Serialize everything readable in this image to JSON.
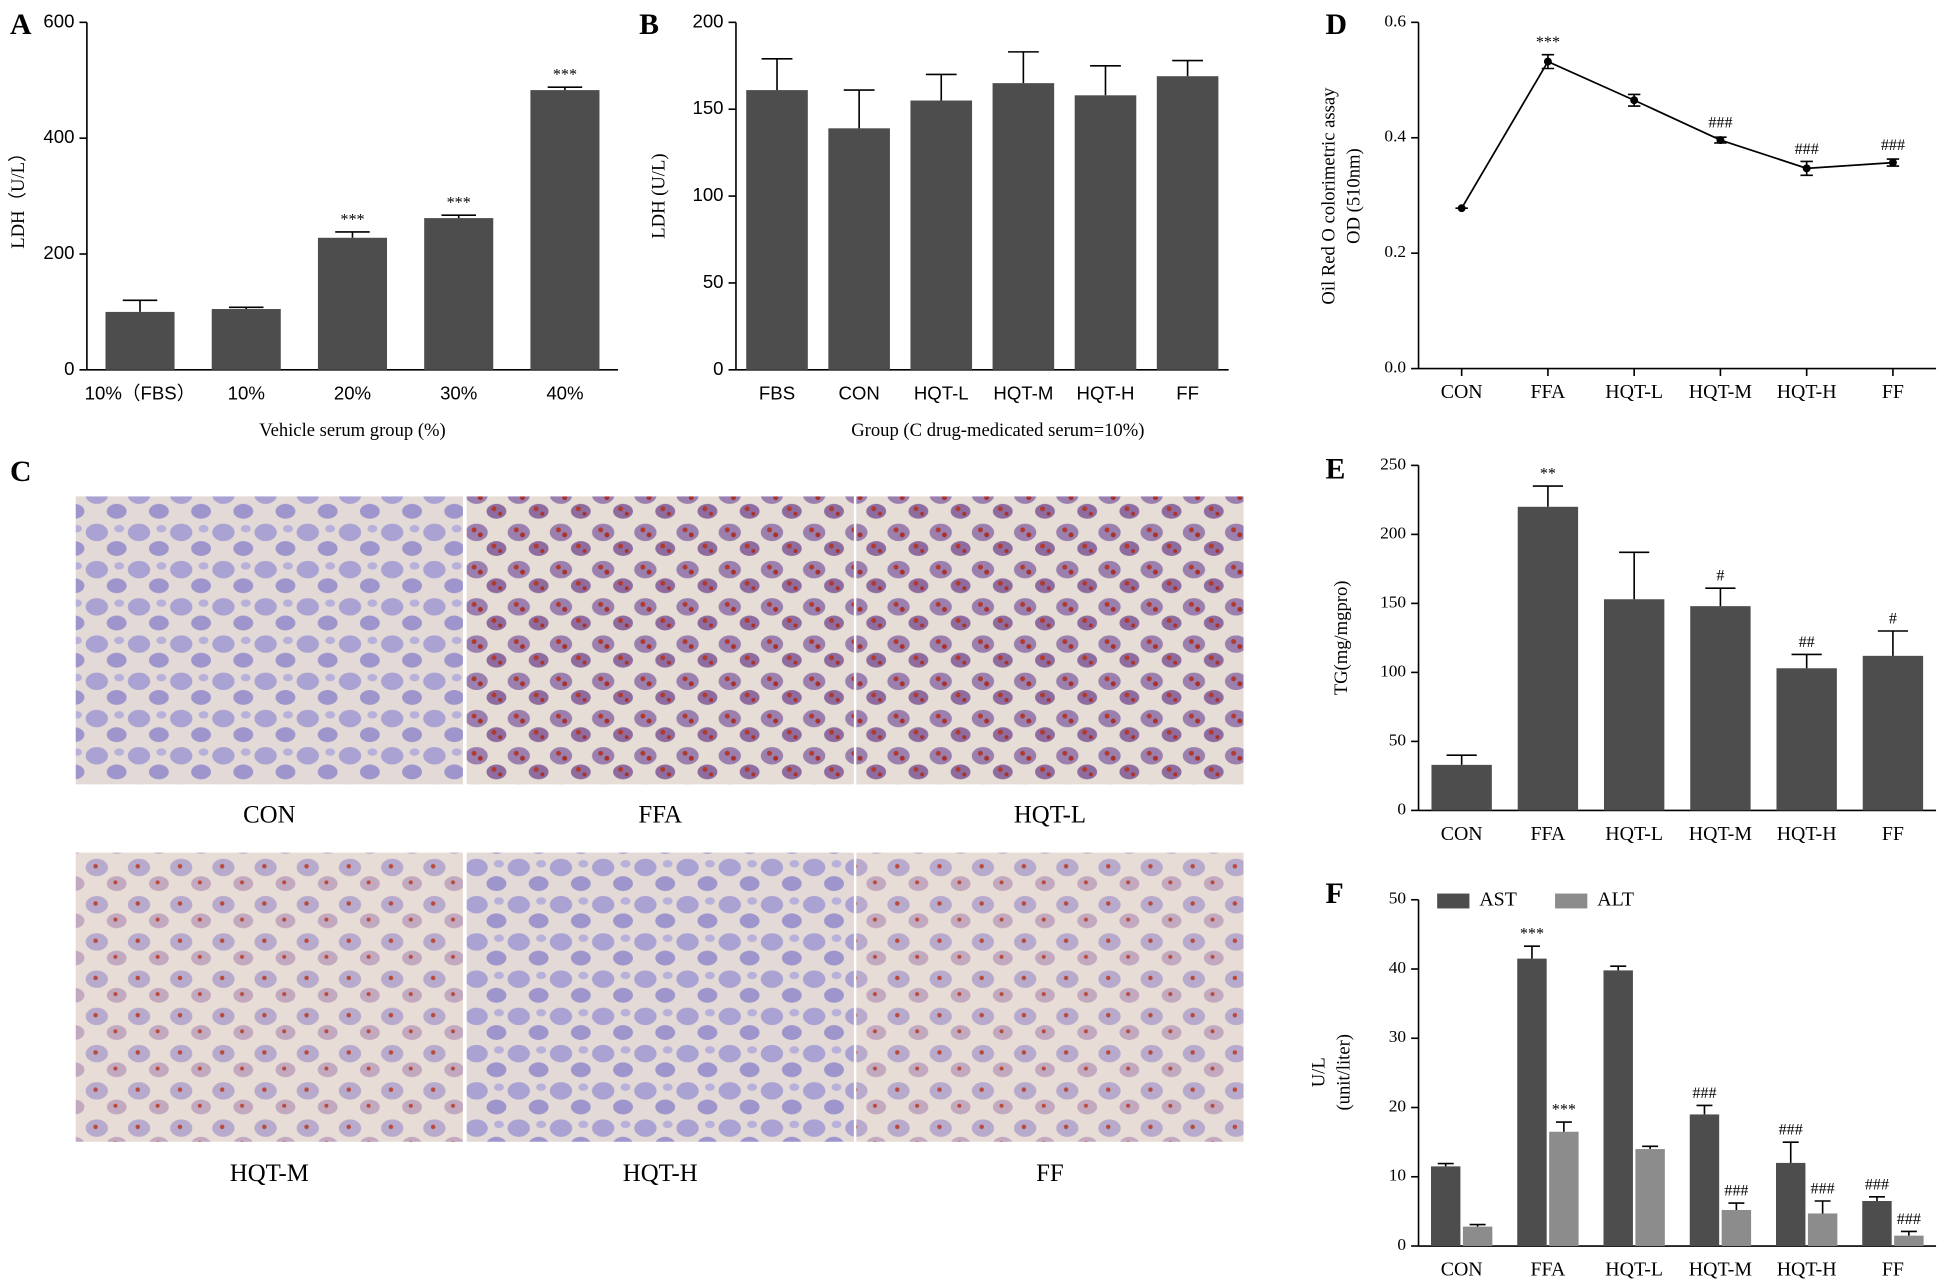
{
  "chart_data": [
    {
      "type": "bar",
      "panel": "A",
      "categories": [
        "10%（FBS）",
        "10%",
        "20%",
        "30%",
        "40%"
      ],
      "values": [
        100,
        105,
        228,
        262,
        483
      ],
      "errors": [
        20,
        3,
        10,
        5,
        5
      ],
      "annotations": [
        null,
        null,
        "***",
        "***",
        "***"
      ],
      "color": "#4d4d4d",
      "xlabel": "Vehicle serum group (%)",
      "ylabel": "LDH（U/L）",
      "ylim": [
        0,
        600
      ],
      "yticks": [
        0,
        200,
        400,
        600
      ]
    },
    {
      "type": "bar",
      "panel": "B",
      "categories": [
        "FBS",
        "CON",
        "HQT-L",
        "HQT-M",
        "HQT-H",
        "FF"
      ],
      "values": [
        161,
        139,
        155,
        165,
        158,
        169
      ],
      "errors": [
        18,
        22,
        15,
        18,
        17,
        9
      ],
      "color": "#4d4d4d",
      "xlabel": "Group (C drug-medicated serum=10%)",
      "ylabel": "LDH (U/L)",
      "ylim": [
        0,
        200
      ],
      "yticks": [
        0,
        50,
        100,
        150,
        200
      ]
    },
    {
      "type": "line",
      "panel": "D",
      "categories": [
        "CON",
        "FFA",
        "HQT-L",
        "HQT-M",
        "HQT-H",
        "FF"
      ],
      "values": [
        0.278,
        0.532,
        0.465,
        0.396,
        0.347,
        0.357
      ],
      "errors": [
        0,
        0.012,
        0.01,
        0.005,
        0.012,
        0.006
      ],
      "annotations": [
        null,
        "***",
        null,
        "###",
        "###",
        "###"
      ],
      "color": "#000000",
      "ylabel": [
        "Oil Red O colorimetric assay",
        "OD (510nm)"
      ],
      "ylim": [
        0,
        0.6
      ],
      "yticks": [
        {
          "value": 0,
          "label": "0.0"
        },
        0.2,
        0.4,
        0.6
      ]
    },
    {
      "type": "bar",
      "panel": "E",
      "categories": [
        "CON",
        "FFA",
        "HQT-L",
        "HQT-M",
        "HQT-H",
        "FF"
      ],
      "values": [
        33,
        220,
        153,
        148,
        103,
        112
      ],
      "errors": [
        7,
        15,
        34,
        13,
        10,
        18
      ],
      "annotations": [
        null,
        "**",
        null,
        "#",
        "##",
        "#"
      ],
      "color": "#4d4d4d",
      "ylabel": "TG(mg/mgpro)",
      "ylim": [
        0,
        250
      ],
      "yticks": [
        0,
        50,
        100,
        150,
        200,
        250
      ]
    },
    {
      "type": "bar",
      "panel": "F",
      "categories": [
        "CON",
        "FFA",
        "HQT-L",
        "HQT-M",
        "HQT-H",
        "FF"
      ],
      "series": [
        {
          "name": "AST",
          "color": "#4d4d4d",
          "values": [
            11.5,
            41.5,
            39.8,
            19,
            12,
            6.5
          ],
          "errors": [
            0.4,
            1.8,
            0.6,
            1.3,
            3,
            0.6
          ],
          "annotations": [
            null,
            "***",
            null,
            "###",
            "###",
            "###"
          ]
        },
        {
          "name": "ALT",
          "color": "#8c8c8c",
          "values": [
            2.8,
            16.5,
            14,
            5.2,
            4.7,
            1.5
          ],
          "errors": [
            0.3,
            1.4,
            0.4,
            1,
            1.8,
            0.6
          ],
          "annotations": [
            null,
            "***",
            null,
            "###",
            "###",
            "###"
          ]
        }
      ],
      "ylabel": [
        "U/L",
        "(unit/liter)"
      ],
      "ylim": [
        0,
        50
      ],
      "yticks": [
        0,
        10,
        20,
        30,
        40,
        50
      ]
    }
  ],
  "micrographs": {
    "panel": "C",
    "labels": [
      "CON",
      "FFA",
      "HQT-L",
      "HQT-M",
      "HQT-H",
      "FF"
    ]
  }
}
